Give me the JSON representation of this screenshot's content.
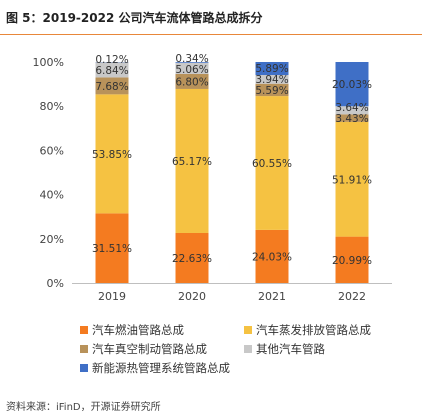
{
  "header": {
    "title": "图 5：2019-2022 公司汽车流体管路总成拆分"
  },
  "chart_data": {
    "type": "bar",
    "stacked": true,
    "categories": [
      "2019",
      "2020",
      "2021",
      "2022"
    ],
    "ylim": [
      0,
      100
    ],
    "yticks": [
      "0%",
      "20%",
      "40%",
      "60%",
      "80%",
      "100%"
    ],
    "grid": false,
    "legend_position": "bottom",
    "series": [
      {
        "name": "汽车燃油管路总成",
        "color": "#f47b20",
        "values": [
          31.51,
          22.63,
          24.03,
          20.99
        ],
        "labels": [
          "31.51%",
          "22.63%",
          "24.03%",
          "20.99%"
        ]
      },
      {
        "name": "汽车蒸发排放管路总成",
        "color": "#f5c242",
        "values": [
          53.85,
          65.17,
          60.55,
          51.91
        ],
        "labels": [
          "53.85%",
          "65.17%",
          "60.55%",
          "51.91%"
        ]
      },
      {
        "name": "汽车真空制动管路总成",
        "color": "#b8925a",
        "values": [
          7.68,
          6.8,
          5.59,
          3.43
        ],
        "labels": [
          "7.68%",
          "6.80%",
          "5.59%",
          "3.43%"
        ]
      },
      {
        "name": "其他汽车管路",
        "color": "#c8c8c8",
        "values": [
          6.84,
          5.06,
          3.94,
          3.64
        ],
        "labels": [
          "6.84%",
          "5.06%",
          "3.94%",
          "3.64%"
        ]
      },
      {
        "name": "新能源热管理系统管路总成",
        "color": "#3f6fc6",
        "values": [
          0.12,
          0.34,
          5.89,
          20.03
        ],
        "labels": [
          "0.12%",
          "0.34%",
          "5.89%",
          "20.03%"
        ]
      }
    ]
  },
  "footer": {
    "source": "资料来源：iFinD，开源证券研究所"
  }
}
